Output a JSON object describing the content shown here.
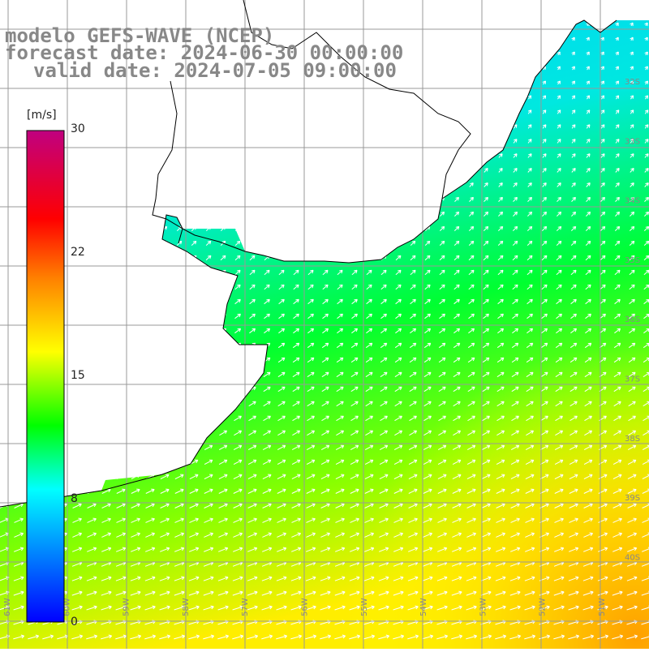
{
  "title_lines": [
    "modelo GEFS-WAVE (NCEP)",
    "forecast date: 2024-06-30 00:00:00",
    "valid date: 2024-07-05 09:00:00"
  ],
  "colorbar": {
    "unit": "[m/s]",
    "min": 0,
    "max": 30,
    "ticks": [
      "30",
      "22",
      "15",
      "8",
      "0"
    ],
    "tick_values": [
      30,
      22,
      15,
      8,
      0
    ],
    "colors": [
      "#0000ff",
      "#00ffff",
      "#00ff00",
      "#ffff00",
      "#ff8000",
      "#ff0000",
      "#c00080"
    ]
  },
  "grid_labels": {
    "lat": [
      "32S",
      "33S",
      "34S",
      "35S",
      "36S",
      "37S",
      "38S",
      "39S",
      "40S"
    ],
    "lon": [
      "61W",
      "60W",
      "59W",
      "58W",
      "57W",
      "56W",
      "55W",
      "54W",
      "53W",
      "52W",
      "51W"
    ]
  },
  "map": {
    "ocean_color": "#00ff00",
    "land_color": "#ffffff",
    "grid_color": "#999999",
    "coast_color": "#000000",
    "arrow_color": "#ffffff"
  }
}
